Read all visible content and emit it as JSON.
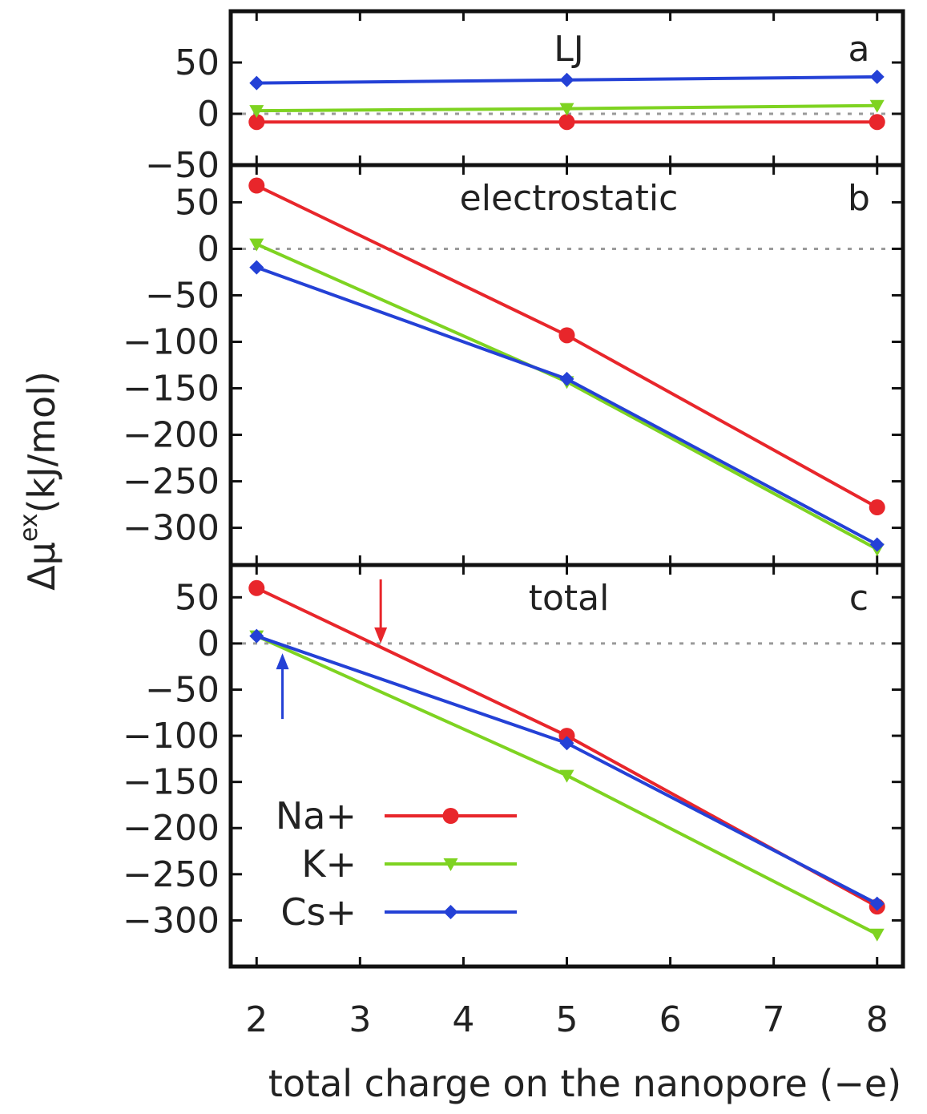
{
  "chart_data": [
    {
      "type": "line",
      "panel": "a",
      "title": "LJ",
      "x": [
        2,
        5,
        8
      ],
      "ylim": [
        -50,
        100
      ],
      "yticks": [
        -50,
        0,
        50
      ],
      "zero_line": true,
      "series": [
        {
          "name": "Na+",
          "color": "#e8262b",
          "marker": "circle",
          "values": [
            -8,
            -8,
            -8
          ]
        },
        {
          "name": "K+",
          "color": "#7ed321",
          "marker": "triangle-down",
          "values": [
            3,
            5,
            8
          ]
        },
        {
          "name": "Cs+",
          "color": "#2441d6",
          "marker": "diamond",
          "values": [
            30,
            33,
            36
          ]
        }
      ]
    },
    {
      "type": "line",
      "panel": "b",
      "title": "electrostatic",
      "x": [
        2,
        5,
        8
      ],
      "ylim": [
        -340,
        90
      ],
      "yticks": [
        -300,
        -250,
        -200,
        -150,
        -100,
        -50,
        0,
        50
      ],
      "zero_line": true,
      "series": [
        {
          "name": "Na+",
          "color": "#e8262b",
          "marker": "circle",
          "values": [
            68,
            -93,
            -278
          ]
        },
        {
          "name": "K+",
          "color": "#7ed321",
          "marker": "triangle-down",
          "values": [
            5,
            -143,
            -323
          ]
        },
        {
          "name": "Cs+",
          "color": "#2441d6",
          "marker": "diamond",
          "values": [
            -20,
            -140,
            -318
          ]
        }
      ]
    },
    {
      "type": "line",
      "panel": "c",
      "title": "total",
      "x": [
        2,
        5,
        8
      ],
      "ylim": [
        -350,
        85
      ],
      "yticks": [
        -300,
        -250,
        -200,
        -150,
        -100,
        -50,
        0,
        50
      ],
      "zero_line": true,
      "annotations": [
        {
          "type": "arrow",
          "direction": "down",
          "x": 3.2,
          "y": 0,
          "color": "#e8262b"
        },
        {
          "type": "arrow",
          "direction": "up",
          "x": 2.25,
          "y": 5,
          "color": "#2441d6"
        }
      ],
      "series": [
        {
          "name": "Na+",
          "color": "#e8262b",
          "marker": "circle",
          "values": [
            60,
            -100,
            -285
          ]
        },
        {
          "name": "K+",
          "color": "#7ed321",
          "marker": "triangle-down",
          "values": [
            8,
            -143,
            -315
          ]
        },
        {
          "name": "Cs+",
          "color": "#2441d6",
          "marker": "diamond",
          "values": [
            8,
            -108,
            -282
          ]
        }
      ]
    }
  ],
  "shared": {
    "xlim": [
      1.75,
      8.25
    ],
    "xticks": [
      2,
      3,
      4,
      5,
      6,
      7,
      8
    ],
    "xlabel": "total charge on the nanopore (−e)",
    "ylabel_main": "Δμ",
    "ylabel_sup": "ex",
    "ylabel_rest": "(kJ/mol)",
    "legend": {
      "placement": "bottom-left of panel c",
      "entries": [
        "Na+",
        "K+",
        "Cs+"
      ]
    }
  }
}
